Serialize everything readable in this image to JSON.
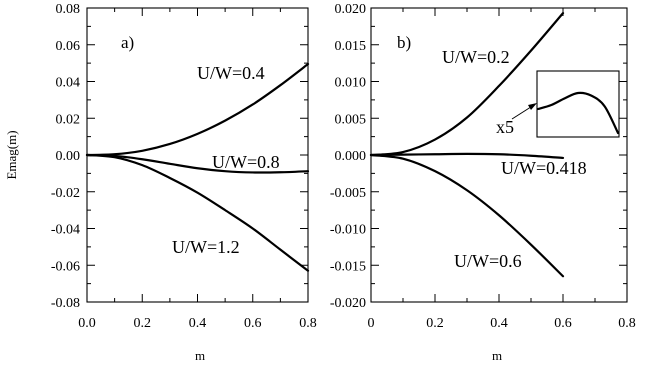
{
  "chart_data": [
    {
      "type": "line",
      "panel_label": "a)",
      "xlabel": "m",
      "ylabel": "Emag(m)",
      "xlim": [
        0.0,
        0.8
      ],
      "ylim": [
        -0.08,
        0.08
      ],
      "x_ticks": [
        "0.0",
        "0.2",
        "0.4",
        "0.6",
        "0.8"
      ],
      "y_ticks": [
        "0.08",
        "0.06",
        "0.04",
        "0.02",
        "0.00",
        "-0.02",
        "-0.04",
        "-0.06",
        "-0.08"
      ],
      "series": [
        {
          "name": "U/W=0.4",
          "x": [
            0.0,
            0.1,
            0.2,
            0.3,
            0.4,
            0.5,
            0.6,
            0.7,
            0.8
          ],
          "y": [
            0.0,
            0.0004,
            0.0023,
            0.006,
            0.0115,
            0.0187,
            0.0275,
            0.038,
            0.0495
          ]
        },
        {
          "name": "U/W=0.8",
          "x": [
            0.0,
            0.1,
            0.2,
            0.3,
            0.4,
            0.5,
            0.6,
            0.7,
            0.8
          ],
          "y": [
            0.0,
            -0.0005,
            -0.0023,
            -0.0048,
            -0.0072,
            -0.0088,
            -0.0095,
            -0.0094,
            -0.0088
          ]
        },
        {
          "name": "U/W=1.2",
          "x": [
            0.0,
            0.1,
            0.2,
            0.3,
            0.4,
            0.5,
            0.6,
            0.7,
            0.8
          ],
          "y": [
            0.0,
            -0.0012,
            -0.0055,
            -0.0125,
            -0.0205,
            -0.03,
            -0.04,
            -0.0515,
            -0.063
          ]
        }
      ]
    },
    {
      "type": "line",
      "panel_label": "b)",
      "xlabel": "m",
      "ylabel": "",
      "xlim": [
        0.0,
        0.8
      ],
      "ylim": [
        -0.02,
        0.02
      ],
      "x_ticks": [
        "0",
        "0.2",
        "0.4",
        "0.6",
        "0.8"
      ],
      "y_ticks": [
        "0.020",
        "0.015",
        "0.010",
        "0.005",
        "0.000",
        "-0.005",
        "-0.010",
        "-0.015",
        "-0.020"
      ],
      "series": [
        {
          "name": "U/W=0.2",
          "x": [
            0.0,
            0.1,
            0.2,
            0.3,
            0.4,
            0.5,
            0.6
          ],
          "y": [
            0.0,
            0.0004,
            0.0021,
            0.0051,
            0.0094,
            0.0142,
            0.0193
          ]
        },
        {
          "name": "U/W=0.418",
          "x": [
            0.0,
            0.1,
            0.2,
            0.3,
            0.4,
            0.5,
            0.6
          ],
          "y": [
            0.0,
            5e-05,
            0.0001,
            0.00015,
            0.0001,
            -0.0001,
            -0.0004
          ]
        },
        {
          "name": "U/W=0.6",
          "x": [
            0.0,
            0.1,
            0.2,
            0.3,
            0.4,
            0.5,
            0.6
          ],
          "y": [
            0.0,
            -0.0005,
            -0.0022,
            -0.0048,
            -0.0082,
            -0.0122,
            -0.0165
          ]
        }
      ],
      "inset": {
        "label": "x5",
        "x": [
          0.0,
          0.1,
          0.2,
          0.3,
          0.4,
          0.5,
          0.6
        ],
        "y": [
          0.0,
          3e-05,
          8e-05,
          0.00012,
          0.0001,
          2e-05,
          -0.00018
        ]
      }
    }
  ]
}
